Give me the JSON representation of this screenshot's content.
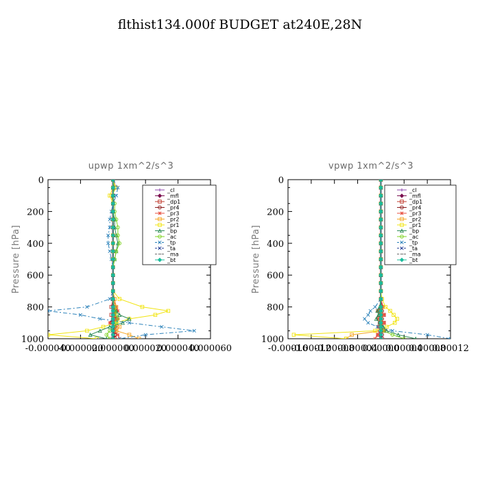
{
  "title": "flthist134.000f  BUDGET at240E,28N",
  "chart_data": [
    {
      "type": "line",
      "title": "upwp   1xm^2/s^3",
      "ylabel": "Pressure [hPa]",
      "ylim": [
        1000,
        0
      ],
      "yticks": [
        "0",
        "200",
        "400",
        "600",
        "800",
        "1000"
      ],
      "xlim": [
        -4e-05,
        6e-05
      ],
      "xticks": [
        "-0.000040",
        "-0.000020",
        "0.000000",
        "0.000020",
        "0.000040",
        "0.000060"
      ],
      "legend_position": "top-right",
      "y": [
        0,
        50,
        100,
        150,
        200,
        250,
        300,
        350,
        400,
        450,
        500,
        550,
        600,
        650,
        700,
        750,
        800,
        825,
        850,
        875,
        900,
        925,
        950,
        975,
        1000
      ],
      "series": [
        {
          "name": "_cl",
          "color": "#8e44ad",
          "values": [
            0,
            0,
            0,
            0,
            0,
            0,
            0,
            0,
            0,
            0,
            0,
            0,
            0,
            0,
            0,
            0,
            0,
            0,
            0,
            0,
            0,
            0,
            0,
            0,
            0
          ]
        },
        {
          "name": "_mfl",
          "color": "#7a0f4f",
          "values": [
            0,
            0,
            0,
            0,
            0,
            0,
            0,
            0,
            0,
            0,
            0,
            0,
            0,
            0,
            0,
            0,
            0,
            0,
            0,
            0,
            0,
            0,
            0,
            0,
            0
          ]
        },
        {
          "name": "_dp1",
          "color": "#c0392b",
          "values": [
            0,
            0,
            0,
            0,
            0,
            0,
            0,
            0,
            0,
            0,
            0,
            0,
            0,
            0,
            0,
            0,
            -1e-06,
            2e-06,
            -1e-06,
            2e-06,
            -1e-06,
            1e-06,
            2e-06,
            1e-06,
            1e-06
          ]
        },
        {
          "name": "_pr4",
          "color": "#8b1a1a",
          "values": [
            0,
            0,
            0,
            0,
            0,
            0,
            0,
            0,
            0,
            0,
            0,
            0,
            0,
            0,
            0,
            0,
            0,
            1e-06,
            0,
            1e-06,
            -1e-06,
            1e-06,
            0,
            1e-06,
            0
          ]
        },
        {
          "name": "_pr3",
          "color": "#e74c3c",
          "values": [
            0,
            0,
            0,
            0,
            0,
            0,
            0,
            0,
            0,
            0,
            0,
            0,
            0,
            0,
            0,
            0,
            2e-06,
            3e-06,
            1e-06,
            3e-06,
            -2e-06,
            2e-06,
            1e-06,
            3e-06,
            4e-06
          ]
        },
        {
          "name": "_pr2",
          "color": "#f5a623",
          "values": [
            0,
            2e-06,
            -1e-06,
            0,
            0,
            0,
            0,
            0,
            0,
            0,
            0,
            0,
            0,
            0,
            0,
            1e-06,
            2e-06,
            1e-06,
            1e-06,
            0,
            2e-06,
            4e-06,
            2e-06,
            1e-05,
            1.6e-05
          ]
        },
        {
          "name": "_pr1",
          "color": "#f1e40f",
          "values": [
            0,
            0,
            -2e-06,
            0,
            0,
            0,
            0,
            0,
            0,
            0,
            0,
            0,
            0,
            0,
            0,
            4e-06,
            1.8e-05,
            3.4e-05,
            2.6e-05,
            1e-05,
            2e-06,
            -6e-06,
            -1.6e-05,
            -4e-05,
            -1e-05
          ]
        },
        {
          "name": "_bp",
          "color": "#2e8b57",
          "values": [
            0,
            0,
            0,
            0,
            0,
            1e-06,
            1e-06,
            2e-06,
            3e-06,
            2e-06,
            1e-06,
            0,
            0,
            0,
            0,
            0,
            0,
            2e-06,
            4e-06,
            1e-05,
            6e-06,
            -2e-06,
            -8e-06,
            -1.4e-05,
            -4e-06
          ]
        },
        {
          "name": "_ac",
          "color": "#7ed321",
          "values": [
            0,
            1e-06,
            0,
            1e-06,
            1e-06,
            2e-06,
            3e-06,
            3e-06,
            4e-06,
            2e-06,
            1e-06,
            0,
            0,
            0,
            0,
            0,
            1e-06,
            1e-06,
            2e-06,
            3e-06,
            2e-06,
            1e-06,
            -2e-06,
            -4e-06,
            -2e-06
          ]
        },
        {
          "name": "_tp",
          "color": "#2980b9",
          "values": [
            0,
            3e-06,
            2e-06,
            0,
            -1e-06,
            -2e-06,
            -2e-06,
            -3e-06,
            -3e-06,
            -2e-06,
            -1e-06,
            0,
            0,
            0,
            0,
            -2e-06,
            -1.6e-05,
            -4e-05,
            -2e-05,
            -8e-06,
            1e-05,
            3e-05,
            5e-05,
            2e-05,
            4e-06
          ]
        },
        {
          "name": "_ta",
          "color": "#1f3a93",
          "values": [
            0,
            0,
            0,
            0,
            0,
            0,
            0,
            0,
            0,
            0,
            0,
            0,
            0,
            0,
            0,
            0,
            0,
            0,
            0,
            0,
            0,
            0,
            0,
            0,
            0
          ]
        },
        {
          "name": "_ma",
          "color": "#6a6a6a",
          "values": [
            0,
            0,
            0,
            0,
            0,
            0,
            0,
            0,
            0,
            0,
            0,
            0,
            0,
            0,
            0,
            0,
            0,
            0,
            0,
            0,
            0,
            0,
            0,
            0,
            0
          ]
        },
        {
          "name": "_bt",
          "color": "#1abc9c",
          "values": [
            0,
            0,
            0,
            0,
            0,
            0,
            0,
            0,
            0,
            0,
            0,
            0,
            0,
            0,
            0,
            0,
            0,
            0,
            0,
            0,
            0,
            0,
            0,
            0,
            0
          ]
        }
      ]
    },
    {
      "type": "line",
      "title": "vpwp   1xm^2/s^3",
      "ylabel": "Pressure [hPa]",
      "ylim": [
        1000,
        0
      ],
      "yticks": [
        "0",
        "200",
        "400",
        "600",
        "800",
        "1000"
      ],
      "xlim": [
        -0.00016,
        0.00012
      ],
      "xticks": [
        "-0.00016",
        "-0.00012",
        "-0.00008",
        "-0.00004",
        "0.00000",
        "0.00004",
        "0.00008",
        "0.00012"
      ],
      "legend_position": "top-right",
      "y": [
        0,
        50,
        100,
        150,
        200,
        250,
        300,
        350,
        400,
        450,
        500,
        550,
        600,
        650,
        700,
        750,
        800,
        825,
        850,
        875,
        900,
        925,
        950,
        975,
        1000
      ],
      "series": [
        {
          "name": "_cl",
          "color": "#8e44ad",
          "values": [
            0,
            0,
            0,
            0,
            0,
            0,
            0,
            0,
            0,
            0,
            0,
            0,
            0,
            0,
            0,
            0,
            0,
            0,
            0,
            0,
            0,
            0,
            0,
            0,
            0
          ]
        },
        {
          "name": "_mfl",
          "color": "#7a0f4f",
          "values": [
            0,
            0,
            0,
            0,
            0,
            0,
            0,
            0,
            0,
            0,
            0,
            0,
            0,
            0,
            0,
            0,
            0,
            0,
            0,
            0,
            0,
            0,
            0,
            0,
            0
          ]
        },
        {
          "name": "_dp1",
          "color": "#c0392b",
          "values": [
            0,
            0,
            0,
            0,
            0,
            0,
            0,
            0,
            0,
            0,
            0,
            0,
            0,
            0,
            0,
            0,
            3e-06,
            -4e-06,
            5e-06,
            -4e-06,
            5e-06,
            -3e-06,
            5e-06,
            -4e-06,
            2e-06
          ]
        },
        {
          "name": "_pr4",
          "color": "#8b1a1a",
          "values": [
            0,
            0,
            0,
            0,
            0,
            0,
            0,
            0,
            0,
            0,
            0,
            0,
            0,
            0,
            0,
            0,
            0,
            2e-06,
            -2e-06,
            2e-06,
            -2e-06,
            2e-06,
            -2e-06,
            2e-06,
            0
          ]
        },
        {
          "name": "_pr3",
          "color": "#e74c3c",
          "values": [
            0,
            0,
            0,
            0,
            0,
            0,
            0,
            0,
            0,
            0,
            0,
            0,
            0,
            0,
            0,
            0,
            4e-06,
            -6e-06,
            6e-06,
            -5e-06,
            6e-06,
            -4e-06,
            6e-06,
            -6e-06,
            -1e-05
          ]
        },
        {
          "name": "_pr2",
          "color": "#f5a623",
          "values": [
            0,
            0,
            0,
            0,
            0,
            0,
            0,
            0,
            0,
            0,
            0,
            0,
            0,
            0,
            0,
            0,
            0,
            0,
            0,
            0,
            0,
            0,
            2e-06,
            -5e-05,
            -6e-05
          ]
        },
        {
          "name": "_pr1",
          "color": "#f1e40f",
          "values": [
            0,
            0,
            0,
            0,
            0,
            0,
            0,
            0,
            0,
            0,
            0,
            0,
            0,
            0,
            0,
            2e-06,
            8e-06,
            1.6e-05,
            2.2e-05,
            2.8e-05,
            2.4e-05,
            1e-05,
            -1e-05,
            -0.00015,
            -6e-05
          ]
        },
        {
          "name": "_bp",
          "color": "#2e8b57",
          "values": [
            0,
            0,
            0,
            0,
            0,
            0,
            0,
            0,
            0,
            0,
            0,
            0,
            0,
            0,
            0,
            0,
            -2e-06,
            -6e-06,
            -4e-06,
            -8e-06,
            -2e-06,
            4e-06,
            1e-05,
            3e-05,
            6e-05
          ]
        },
        {
          "name": "_ac",
          "color": "#7ed321",
          "values": [
            0,
            0,
            0,
            0,
            0,
            0,
            0,
            0,
            0,
            0,
            0,
            0,
            0,
            0,
            0,
            0,
            0,
            0,
            0,
            0,
            0,
            0,
            4e-06,
            2e-05,
            4e-05
          ]
        },
        {
          "name": "_tp",
          "color": "#2980b9",
          "values": [
            0,
            0,
            0,
            0,
            0,
            0,
            0,
            0,
            0,
            0,
            0,
            0,
            0,
            0,
            0,
            0,
            -1e-05,
            -1.8e-05,
            -2.2e-05,
            -2.8e-05,
            -2.2e-05,
            -6e-06,
            2e-05,
            8e-05,
            0.00012
          ]
        },
        {
          "name": "_ta",
          "color": "#1f3a93",
          "values": [
            0,
            0,
            0,
            0,
            0,
            0,
            0,
            0,
            0,
            0,
            0,
            0,
            0,
            0,
            0,
            0,
            0,
            0,
            0,
            0,
            0,
            0,
            0,
            0,
            0
          ]
        },
        {
          "name": "_ma",
          "color": "#6a6a6a",
          "values": [
            0,
            0,
            0,
            0,
            0,
            0,
            0,
            0,
            0,
            0,
            0,
            0,
            0,
            0,
            0,
            0,
            0,
            0,
            0,
            0,
            0,
            0,
            0,
            0,
            0
          ]
        },
        {
          "name": "_bt",
          "color": "#1abc9c",
          "values": [
            0,
            0,
            0,
            0,
            0,
            0,
            0,
            0,
            0,
            0,
            0,
            0,
            0,
            0,
            0,
            0,
            0,
            0,
            0,
            0,
            0,
            0,
            0,
            0,
            0
          ]
        }
      ]
    }
  ]
}
